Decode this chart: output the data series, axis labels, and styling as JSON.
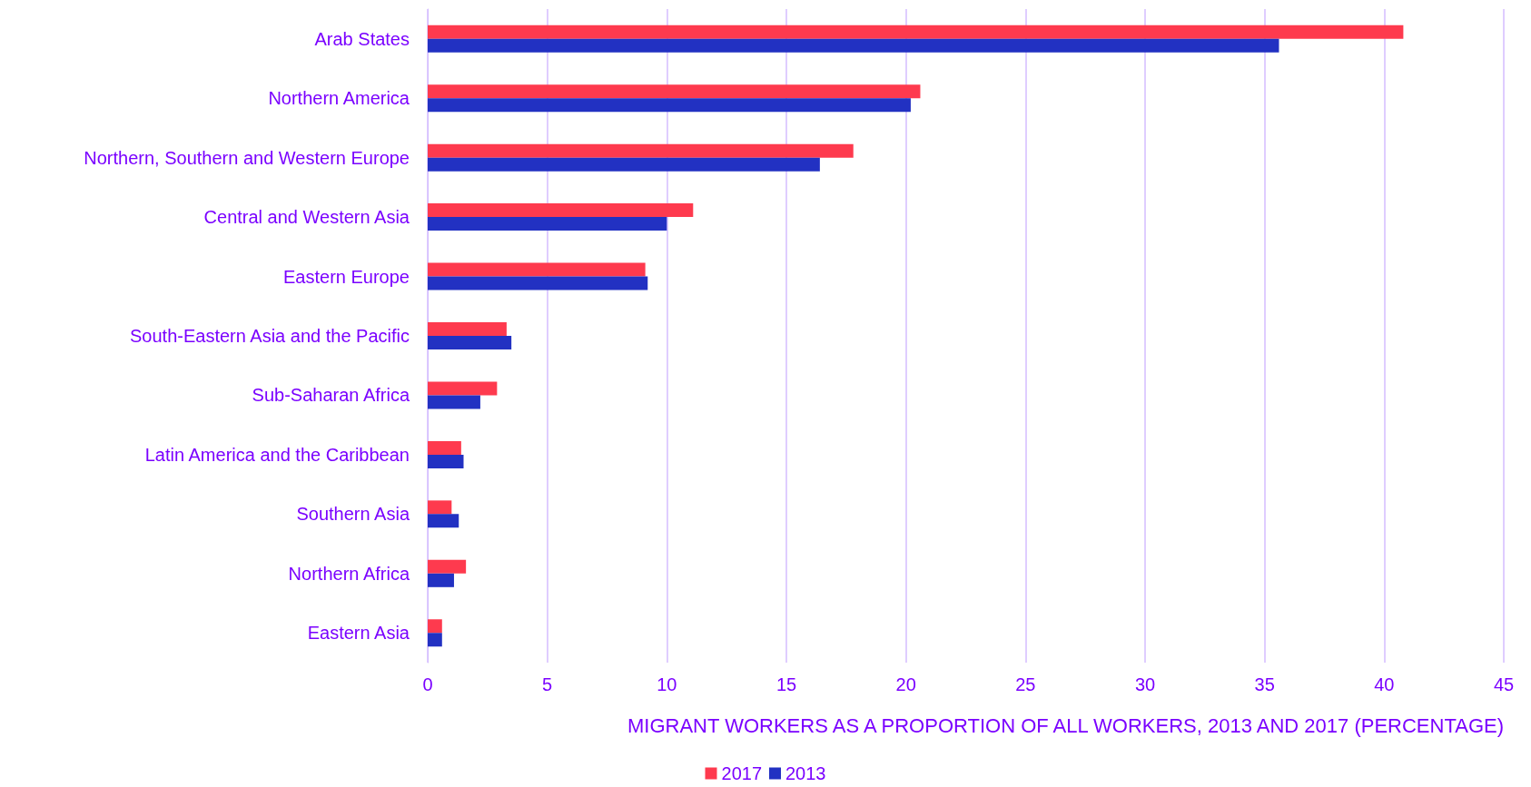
{
  "chart_data": {
    "type": "bar",
    "orientation": "horizontal",
    "xlabel": "MIGRANT WORKERS AS A PROPORTION OF ALL WORKERS, 2013 AND 2017 (PERCENTAGE)",
    "categories": [
      "Arab States",
      "Northern America",
      "Northern, Southern and Western Europe",
      "Central and Western Asia",
      "Eastern Europe",
      "South-Eastern Asia and the Pacific",
      "Sub-Saharan Africa",
      "Latin America and the Caribbean",
      "Southern Asia",
      "Northern Africa",
      "Eastern Asia"
    ],
    "series": [
      {
        "name": "2017",
        "color": "#fe3a4e",
        "values": [
          40.8,
          20.6,
          17.8,
          11.1,
          9.1,
          3.3,
          2.9,
          1.4,
          1.0,
          1.6,
          0.6
        ]
      },
      {
        "name": "2013",
        "color": "#2231c2",
        "values": [
          35.6,
          20.2,
          16.4,
          10.0,
          9.2,
          3.5,
          2.2,
          1.5,
          1.3,
          1.1,
          0.6
        ]
      }
    ],
    "xlim": [
      0,
      45
    ],
    "xticks": [
      0,
      5,
      10,
      15,
      20,
      25,
      30,
      35,
      40,
      45
    ],
    "grid": "x",
    "legend": "bottom"
  }
}
